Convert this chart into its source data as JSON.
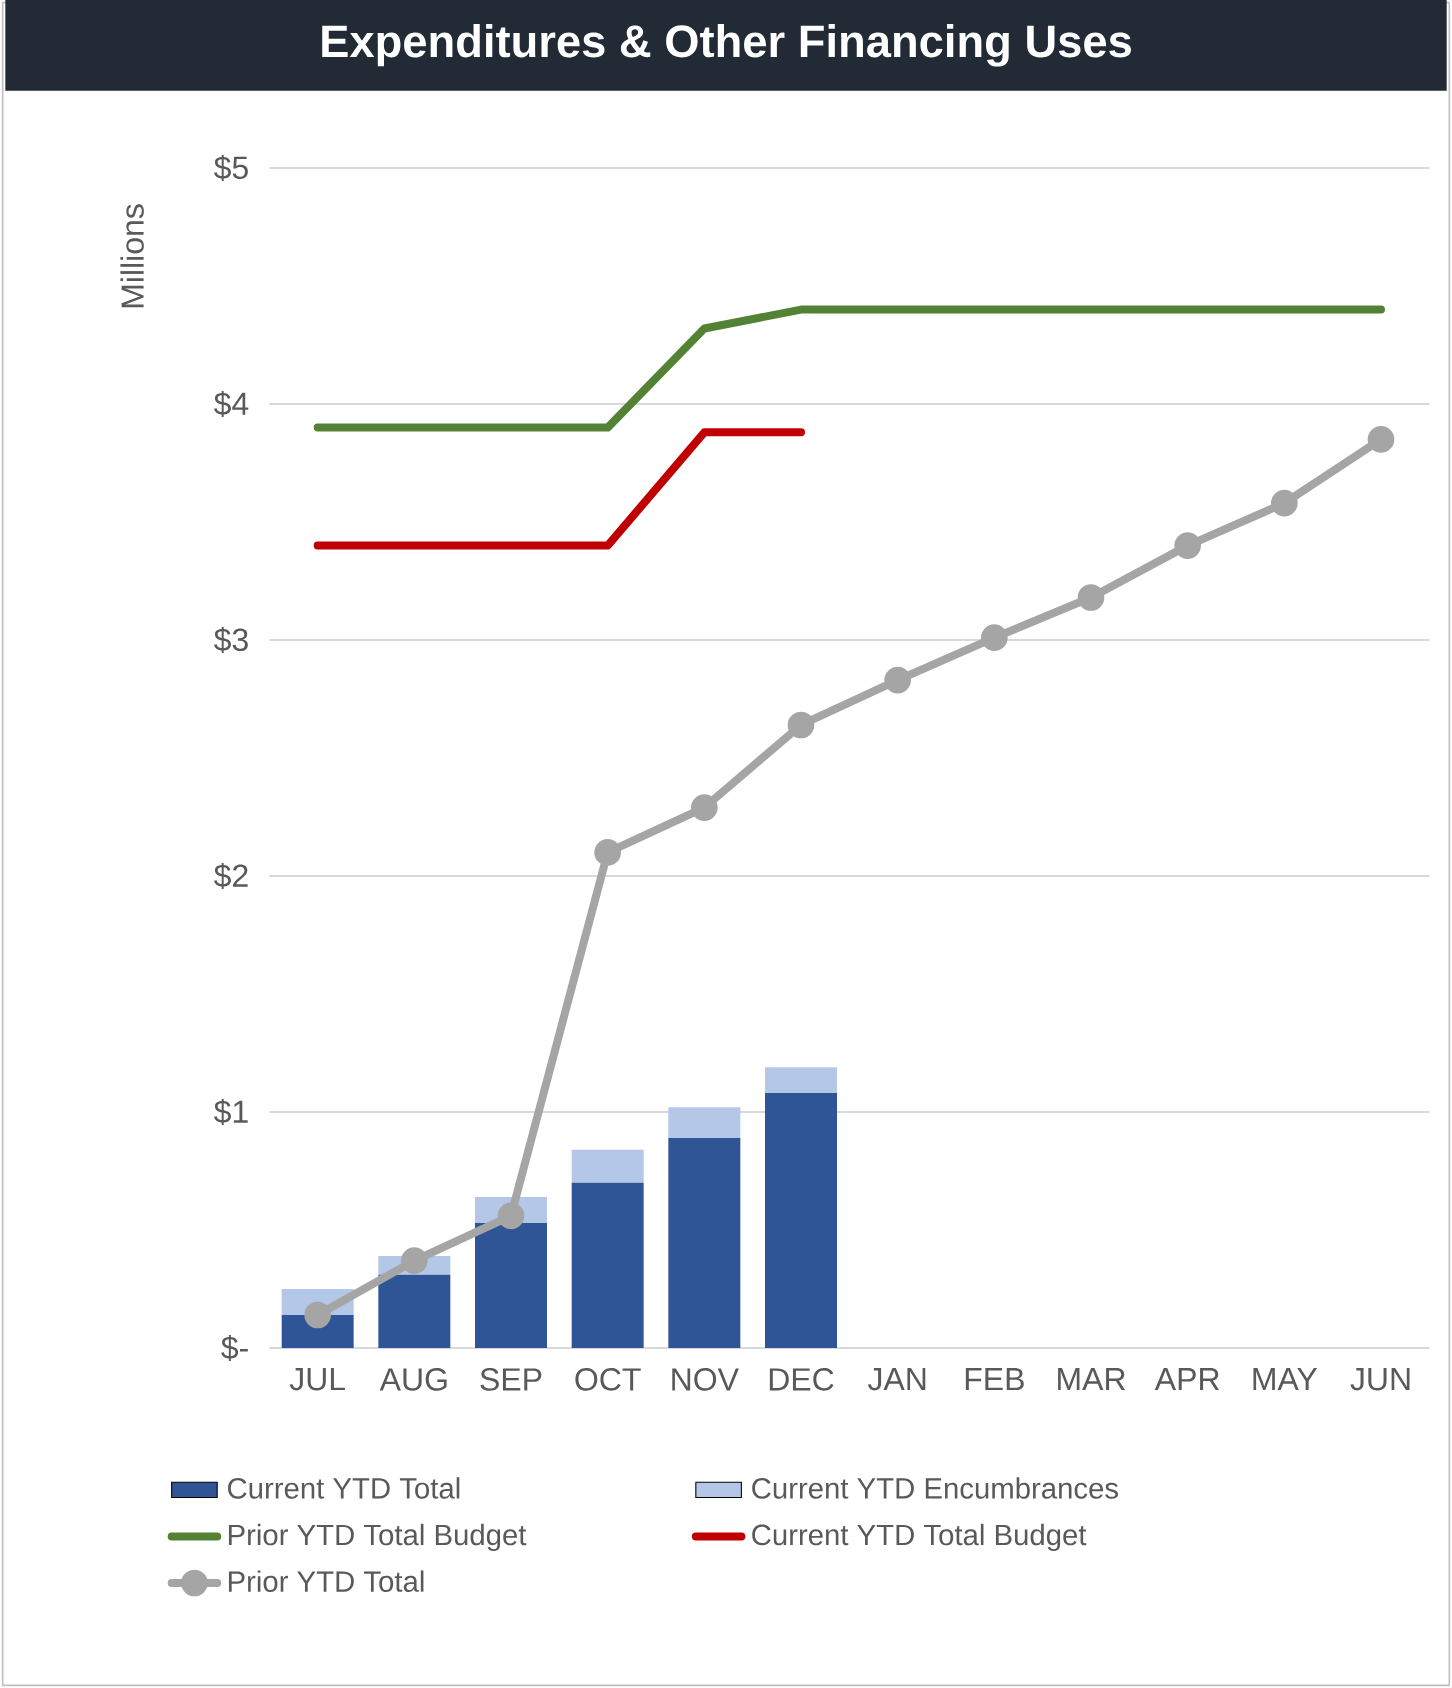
{
  "chart_data": {
    "type": "bar",
    "title": "Expenditures & Other Financing Uses",
    "ylabel": "Millions",
    "categories": [
      "JUL",
      "AUG",
      "SEP",
      "OCT",
      "NOV",
      "DEC",
      "JAN",
      "FEB",
      "MAR",
      "APR",
      "MAY",
      "JUN"
    ],
    "stacked": true,
    "grid": "y",
    "legend": "bottom",
    "ylim": [
      0,
      5
    ],
    "yticks": [
      {
        "value": 0,
        "label": "$-"
      },
      {
        "value": 1,
        "label": "$1"
      },
      {
        "value": 2,
        "label": "$2"
      },
      {
        "value": 3,
        "label": "$3"
      },
      {
        "value": 4,
        "label": "$4"
      },
      {
        "value": 5,
        "label": "$5"
      }
    ],
    "series": [
      {
        "name": "Current YTD Total",
        "color": "#2f5597",
        "values": [
          0.14,
          0.31,
          0.53,
          0.7,
          0.89,
          1.08,
          null,
          null,
          null,
          null,
          null,
          null
        ]
      },
      {
        "name": "Current YTD Encumbrances",
        "color": "#b4c7e7",
        "values": [
          0.11,
          0.08,
          0.11,
          0.14,
          0.13,
          0.11,
          null,
          null,
          null,
          null,
          null,
          null
        ]
      },
      {
        "name": "Prior YTD Total Budget",
        "type": "line",
        "color": "#548235",
        "values": [
          3.9,
          3.9,
          3.9,
          3.9,
          4.32,
          4.4,
          4.4,
          4.4,
          4.4,
          4.4,
          4.4,
          4.4
        ]
      },
      {
        "name": "Current  YTD Total Budget",
        "type": "line",
        "color": "#c00000",
        "values": [
          3.4,
          3.4,
          3.4,
          3.4,
          3.88,
          3.88,
          null,
          null,
          null,
          null,
          null,
          null
        ]
      },
      {
        "name": "Prior YTD Total",
        "type": "line",
        "color": "#a5a5a5",
        "marker": "circle",
        "values": [
          0.14,
          0.37,
          0.56,
          2.1,
          2.29,
          2.64,
          2.83,
          3.01,
          3.18,
          3.4,
          3.58,
          3.85
        ]
      }
    ]
  }
}
